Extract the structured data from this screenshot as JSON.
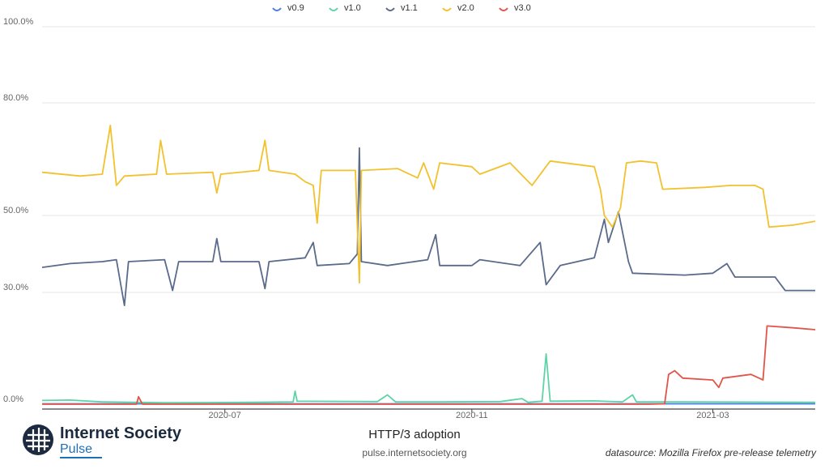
{
  "chart_data": {
    "type": "line",
    "title": "HTTP/3 adoption",
    "y_tick_labels": [
      "0.0%",
      "30.0%",
      "50.0%",
      "80.0%",
      "100.0%"
    ],
    "y_tick_values": [
      0,
      30,
      50,
      80,
      100
    ],
    "x_tick_labels": [
      "2020-07",
      "2020-11",
      "2021-03"
    ],
    "x_tick_dates": [
      "2020-07-01",
      "2020-11-01",
      "2021-03-01"
    ],
    "x_range": [
      "2020-04-01",
      "2021-04-21"
    ],
    "grid": true,
    "legend_position": "top-center",
    "series": [
      {
        "name": "v0.9",
        "color": "#4a7fe0",
        "points": [
          [
            "2020-04-01",
            0.1
          ],
          [
            "2021-04-21",
            0.1
          ]
        ]
      },
      {
        "name": "v1.0",
        "color": "#5fd3a6",
        "points": [
          [
            "2020-04-01",
            1.0
          ],
          [
            "2020-04-15",
            1.1
          ],
          [
            "2020-05-01",
            0.6
          ],
          [
            "2020-06-01",
            0.4
          ],
          [
            "2020-07-15",
            0.5
          ],
          [
            "2020-08-04",
            0.6
          ],
          [
            "2020-08-05",
            3.5
          ],
          [
            "2020-08-06",
            0.8
          ],
          [
            "2020-09-15",
            0.7
          ],
          [
            "2020-09-20",
            2.5
          ],
          [
            "2020-09-24",
            0.6
          ],
          [
            "2020-10-15",
            0.6
          ],
          [
            "2020-11-15",
            0.7
          ],
          [
            "2020-11-26",
            1.5
          ],
          [
            "2020-11-29",
            0.5
          ],
          [
            "2020-12-06",
            0.8
          ],
          [
            "2020-12-08",
            13.5
          ],
          [
            "2020-12-10",
            0.8
          ],
          [
            "2021-01-01",
            0.9
          ],
          [
            "2021-01-15",
            0.6
          ],
          [
            "2021-01-20",
            2.5
          ],
          [
            "2021-01-22",
            0.6
          ],
          [
            "2021-02-15",
            0.6
          ],
          [
            "2021-04-21",
            0.5
          ]
        ]
      },
      {
        "name": "v1.1",
        "color": "#5a6a8a",
        "points": [
          [
            "2020-04-01",
            36.5
          ],
          [
            "2020-04-15",
            37.5
          ],
          [
            "2020-05-01",
            38.0
          ],
          [
            "2020-05-08",
            38.5
          ],
          [
            "2020-05-12",
            26.5
          ],
          [
            "2020-05-14",
            38.0
          ],
          [
            "2020-06-01",
            38.5
          ],
          [
            "2020-06-05",
            30.5
          ],
          [
            "2020-06-08",
            38.0
          ],
          [
            "2020-06-25",
            38.0
          ],
          [
            "2020-06-27",
            44.0
          ],
          [
            "2020-06-29",
            38.0
          ],
          [
            "2020-07-18",
            38.0
          ],
          [
            "2020-07-21",
            31.0
          ],
          [
            "2020-07-23",
            38.0
          ],
          [
            "2020-08-10",
            39.0
          ],
          [
            "2020-08-14",
            43.0
          ],
          [
            "2020-08-16",
            37.0
          ],
          [
            "2020-09-01",
            37.5
          ],
          [
            "2020-09-05",
            40.0
          ],
          [
            "2020-09-06",
            68.0
          ],
          [
            "2020-09-07",
            38.0
          ],
          [
            "2020-09-20",
            37.0
          ],
          [
            "2020-10-10",
            38.5
          ],
          [
            "2020-10-14",
            45.0
          ],
          [
            "2020-10-16",
            37.0
          ],
          [
            "2020-11-01",
            37.0
          ],
          [
            "2020-11-05",
            38.5
          ],
          [
            "2020-11-25",
            37.0
          ],
          [
            "2020-12-05",
            43.0
          ],
          [
            "2020-12-08",
            32.0
          ],
          [
            "2020-12-15",
            37.0
          ],
          [
            "2021-01-01",
            39.0
          ],
          [
            "2021-01-06",
            49.0
          ],
          [
            "2021-01-08",
            43.0
          ],
          [
            "2021-01-13",
            51.0
          ],
          [
            "2021-01-18",
            38.0
          ],
          [
            "2021-01-20",
            35.0
          ],
          [
            "2021-02-15",
            34.5
          ],
          [
            "2021-03-01",
            35.0
          ],
          [
            "2021-03-08",
            37.5
          ],
          [
            "2021-03-12",
            34.0
          ],
          [
            "2021-04-01",
            34.0
          ],
          [
            "2021-04-06",
            30.5
          ],
          [
            "2021-04-21",
            30.5
          ]
        ]
      },
      {
        "name": "v2.0",
        "color": "#f2c12e",
        "points": [
          [
            "2020-04-01",
            61.5
          ],
          [
            "2020-04-20",
            60.5
          ],
          [
            "2020-05-01",
            61.0
          ],
          [
            "2020-05-05",
            74.0
          ],
          [
            "2020-05-08",
            58.0
          ],
          [
            "2020-05-12",
            60.5
          ],
          [
            "2020-05-28",
            61.0
          ],
          [
            "2020-05-30",
            70.0
          ],
          [
            "2020-06-02",
            61.0
          ],
          [
            "2020-06-25",
            61.5
          ],
          [
            "2020-06-27",
            56.0
          ],
          [
            "2020-06-29",
            61.0
          ],
          [
            "2020-07-18",
            62.0
          ],
          [
            "2020-07-21",
            70.0
          ],
          [
            "2020-07-23",
            62.0
          ],
          [
            "2020-08-05",
            61.0
          ],
          [
            "2020-08-10",
            59.0
          ],
          [
            "2020-08-14",
            58.0
          ],
          [
            "2020-08-16",
            48.0
          ],
          [
            "2020-08-18",
            62.0
          ],
          [
            "2020-09-04",
            62.0
          ],
          [
            "2020-09-06",
            32.5
          ],
          [
            "2020-09-07",
            62.0
          ],
          [
            "2020-09-25",
            62.5
          ],
          [
            "2020-10-05",
            60.0
          ],
          [
            "2020-10-08",
            64.0
          ],
          [
            "2020-10-13",
            57.0
          ],
          [
            "2020-10-16",
            64.0
          ],
          [
            "2020-11-01",
            63.0
          ],
          [
            "2020-11-05",
            61.0
          ],
          [
            "2020-11-20",
            64.0
          ],
          [
            "2020-12-01",
            58.0
          ],
          [
            "2020-12-10",
            64.5
          ],
          [
            "2021-01-01",
            63.0
          ],
          [
            "2021-01-04",
            57.0
          ],
          [
            "2021-01-06",
            50.0
          ],
          [
            "2021-01-10",
            47.0
          ],
          [
            "2021-01-14",
            52.0
          ],
          [
            "2021-01-17",
            64.0
          ],
          [
            "2021-01-24",
            64.5
          ],
          [
            "2021-02-01",
            64.0
          ],
          [
            "2021-02-04",
            57.0
          ],
          [
            "2021-02-25",
            57.5
          ],
          [
            "2021-03-10",
            58.0
          ],
          [
            "2021-03-22",
            58.0
          ],
          [
            "2021-03-26",
            57.0
          ],
          [
            "2021-03-29",
            47.0
          ],
          [
            "2021-04-10",
            47.5
          ],
          [
            "2021-04-21",
            48.5
          ]
        ]
      },
      {
        "name": "v3.0",
        "color": "#e0554a",
        "points": [
          [
            "2020-04-01",
            0.0
          ],
          [
            "2020-05-18",
            0.0
          ],
          [
            "2020-05-19",
            2.0
          ],
          [
            "2020-05-21",
            0.0
          ],
          [
            "2021-01-28",
            0.0
          ],
          [
            "2021-02-05",
            0.1
          ],
          [
            "2021-02-07",
            8.0
          ],
          [
            "2021-02-10",
            9.0
          ],
          [
            "2021-02-14",
            7.0
          ],
          [
            "2021-03-01",
            6.5
          ],
          [
            "2021-03-04",
            4.5
          ],
          [
            "2021-03-06",
            7.0
          ],
          [
            "2021-03-20",
            8.0
          ],
          [
            "2021-03-26",
            6.5
          ],
          [
            "2021-03-28",
            21.0
          ],
          [
            "2021-04-10",
            20.5
          ],
          [
            "2021-04-21",
            20.0
          ]
        ]
      }
    ]
  },
  "footer": {
    "brand_name": "Internet Society",
    "brand_sub": "Pulse",
    "title": "HTTP/3 adoption",
    "url": "pulse.internetsociety.org",
    "datasource": "datasource: Mozilla Firefox pre-release telemetry"
  }
}
